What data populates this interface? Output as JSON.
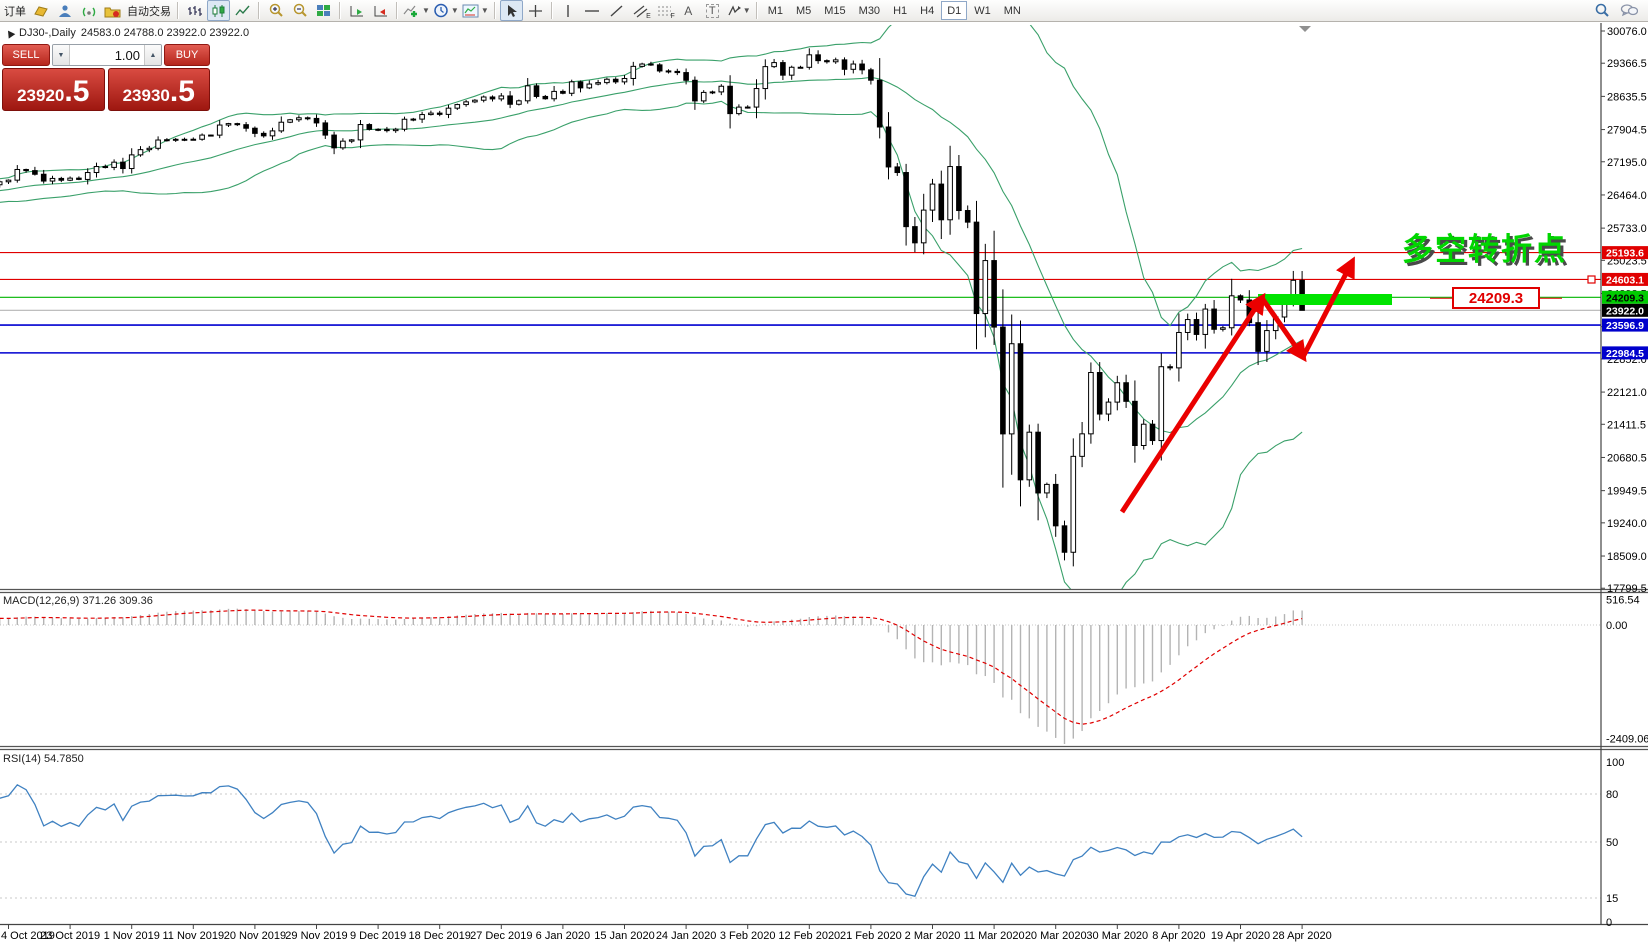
{
  "toolbar": {
    "order_label": "订单",
    "autotrade_label": "自动交易",
    "letter_a": "A",
    "letter_t": "T",
    "channel_sub": "E",
    "fibo_sub": "F",
    "timeframes": [
      "M1",
      "M5",
      "M15",
      "M30",
      "H1",
      "H4",
      "D1",
      "W1",
      "MN"
    ],
    "active_timeframe": "D1"
  },
  "chart_header": {
    "symbol_period": "DJ30-,Daily",
    "ohlc_text": "24583.0 24788.0 23922.0 23922.0"
  },
  "one_click": {
    "sell_label": "SELL",
    "buy_label": "BUY",
    "volume": "1.00",
    "down_glyph": "▼",
    "up_glyph": "▲",
    "sell_price_main": "23920",
    "sell_price_frac": ".5",
    "buy_price_main": "23930",
    "buy_price_frac": ".5"
  },
  "panes": {
    "macd_label": "MACD(12,26,9) 371.26 309.36",
    "rsi_label": "RSI(14) 54.7850"
  },
  "annotations": {
    "turning_point_text": "多空转折点",
    "level_box_text": "24209.3"
  },
  "colors": {
    "bull_candle": "#ffffff",
    "bear_candle": "#000000",
    "bollinger": "#3aa06a",
    "red_line": "#e00000",
    "green_line": "#00b400",
    "blue_line": "#0000d0",
    "bid_line": "#b4b4b4",
    "green_highlight": "#00e400",
    "macd_hist": "#b4b4b4",
    "macd_signal": "#e00000",
    "rsi_line": "#3f81c1",
    "annotation_green": "#00d600",
    "annotation_red": "#ea0000"
  },
  "chart_data": {
    "type": "candlestick",
    "symbol": "DJ30-",
    "period": "Daily",
    "last_bar_ohlc": {
      "open": 24583.0,
      "high": 24788.0,
      "low": 23922.0,
      "close": 23922.0
    },
    "indicators": [
      "Bollinger Bands(20,2)",
      "MACD(12,26,9)",
      "RSI(14)"
    ],
    "macd_values": {
      "main": 371.26,
      "signal": 309.36
    },
    "rsi_value": 54.785,
    "x_labels": [
      "4 Oct 2019",
      "23 Oct 2019",
      "1 Nov 2019",
      "11 Nov 2019",
      "20 Nov 2019",
      "29 Nov 2019",
      "9 Dec 2019",
      "18 Dec 2019",
      "27 Dec 2019",
      "6 Jan 2020",
      "15 Jan 2020",
      "24 Jan 2020",
      "3 Feb 2020",
      "12 Feb 2020",
      "21 Feb 2020",
      "2 Mar 2020",
      "11 Mar 2020",
      "20 Mar 2020",
      "30 Mar 2020",
      "8 Apr 2020",
      "19 Apr 2020",
      "28 Apr 2020"
    ],
    "bars_per_label": 7,
    "closes": [
      26790,
      27025,
      27000,
      26920,
      26770,
      26828,
      26788,
      26834,
      26806,
      26958,
      27090,
      27071,
      27186,
      27046,
      27347,
      27462,
      27492,
      27674,
      27681,
      27690,
      27683,
      27691,
      27783,
      27782,
      28004,
      28036,
      28012,
      27934,
      27821,
      27766,
      27875,
      28066,
      28121,
      28164,
      28150,
      28051,
      27783,
      27502,
      27649,
      27677,
      28015,
      27909,
      27910,
      27881,
      27911,
      28132,
      28135,
      28235,
      28267,
      28239,
      28376,
      28455,
      28515,
      28551,
      28622,
      28580,
      28645,
      28462,
      28538,
      28868,
      28634,
      28583,
      28745,
      28704,
      28956,
      28823,
      28907,
      28939,
      29013,
      28955,
      29030,
      29297,
      29348,
      29330,
      29196,
      29186,
      29160,
      28990,
      28536,
      28723,
      28734,
      28859,
      28256,
      28399,
      28400,
      28808,
      29291,
      29380,
      29103,
      29277,
      29276,
      29551,
      29423,
      29398,
      29440,
      29232,
      29348,
      29220,
      28992,
      27961,
      27081,
      26958,
      25766,
      25409,
      26130,
      26703,
      25917,
      27090,
      26121,
      25865,
      23851,
      25018,
      23553,
      21200,
      23186,
      20188,
      21237,
      19899,
      20087,
      19174,
      18592,
      20705,
      21201,
      22552,
      21637,
      21900,
      22327,
      21917,
      20944,
      21413,
      21053,
      22680,
      22654,
      23434,
      23719,
      23391,
      23950,
      23504,
      23538,
      24242,
      24150,
      23650,
      23018,
      23476,
      23775,
      24133,
      24583,
      23922
    ],
    "price_axis_ticks": [
      30076.0,
      29366.5,
      28635.5,
      27904.5,
      27195.0,
      26464.0,
      25733.0,
      25023.5,
      24292.5,
      23561.5,
      22852.0,
      22121.0,
      21411.5,
      20680.5,
      19949.5,
      19240.0,
      18509.0,
      17799.5
    ],
    "hlines": [
      {
        "price": 25193.6,
        "color": "red"
      },
      {
        "price": 24603.1,
        "color": "red"
      },
      {
        "price": 24209.3,
        "color": "green"
      },
      {
        "price": 23922.0,
        "color": "silver"
      },
      {
        "price": 23596.9,
        "color": "blue"
      },
      {
        "price": 22984.5,
        "color": "blue"
      }
    ],
    "price_badges": [
      {
        "text": "25193.6",
        "price": 25193.6,
        "bg": "#e00000",
        "fg": "#ffffff"
      },
      {
        "text": "24603.1",
        "price": 24603.1,
        "bg": "#e00000",
        "fg": "#ffffff"
      },
      {
        "text": "24209.3",
        "price": 24209.3,
        "bg": "#00cc00",
        "fg": "#000000"
      },
      {
        "text": "23922.0",
        "price": 23922.0,
        "bg": "#000000",
        "fg": "#ffffff"
      },
      {
        "text": "23596.9",
        "price": 23596.9,
        "bg": "#0000cc",
        "fg": "#ffffff"
      },
      {
        "text": "22984.5",
        "price": 22984.5,
        "bg": "#0000cc",
        "fg": "#ffffff"
      }
    ],
    "macd_axis_labels": [
      "516.54",
      "0.00",
      "-2409.06"
    ],
    "rsi_axis_labels": [
      "100",
      "80",
      "50",
      "15",
      "0"
    ],
    "rsi_level_lines": [
      80,
      50,
      15
    ],
    "ylim_main": [
      17799.5,
      30076.0
    ]
  }
}
